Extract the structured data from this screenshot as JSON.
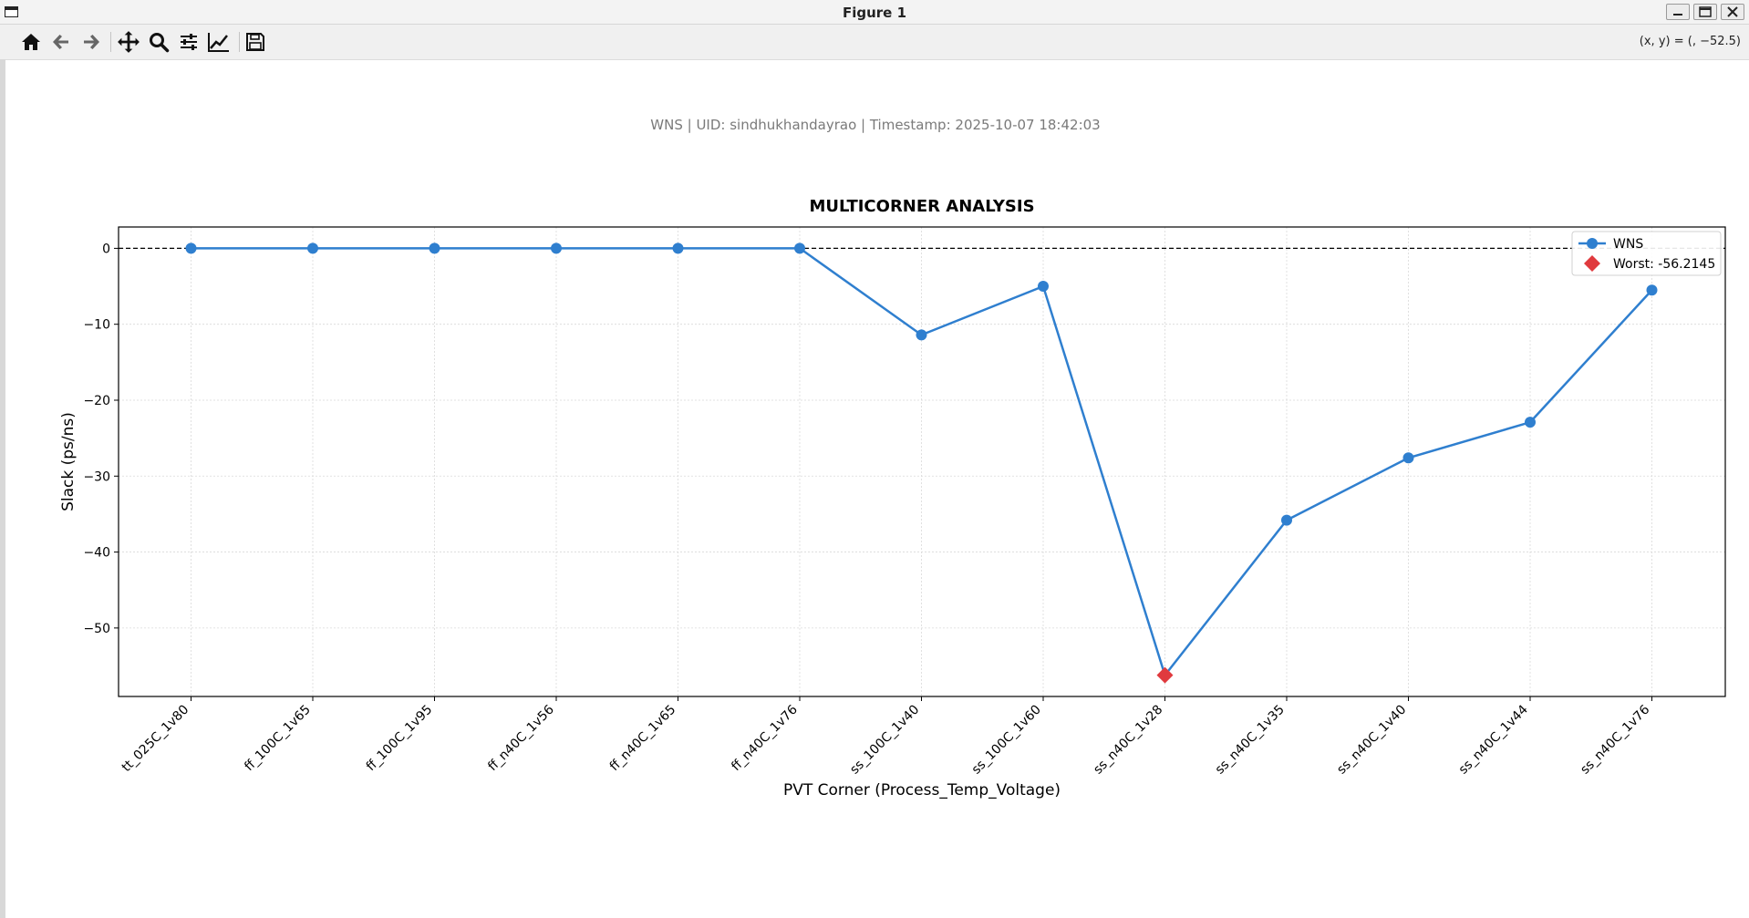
{
  "window": {
    "title": "Figure 1",
    "icon": "window-icon",
    "controls": [
      "minimize-icon",
      "maximize-icon",
      "close-icon"
    ]
  },
  "toolbar": {
    "tools": [
      {
        "name": "home",
        "icon": "home-icon"
      },
      {
        "name": "back",
        "icon": "arrow-left-icon"
      },
      {
        "name": "forward",
        "icon": "arrow-right-icon"
      },
      {
        "name": "pan",
        "icon": "move-icon"
      },
      {
        "name": "zoom",
        "icon": "magnifier-icon"
      },
      {
        "name": "configure-subplots",
        "icon": "sliders-icon"
      },
      {
        "name": "edit-axes",
        "icon": "line-chart-icon"
      },
      {
        "name": "save",
        "icon": "floppy-disk-icon"
      }
    ],
    "coords": "(x, y) = (, −52.5)"
  },
  "figure": {
    "suptitle": "WNS | UID: sindhukhandayrao | Timestamp: 2025-10-07 18:42:03"
  },
  "chart_data": {
    "type": "line",
    "title": "MULTICORNER ANALYSIS",
    "xlabel": "PVT Corner (Process_Temp_Voltage)",
    "ylabel": "Slack (ps/ns)",
    "categories": [
      "tt_025C_1v80",
      "ff_100C_1v65",
      "ff_100C_1v95",
      "ff_n40C_1v56",
      "ff_n40C_1v65",
      "ff_n40C_1v76",
      "ss_100C_1v40",
      "ss_100C_1v60",
      "ss_n40C_1v28",
      "ss_n40C_1v35",
      "ss_n40C_1v40",
      "ss_n40C_1v44",
      "ss_n40C_1v76"
    ],
    "series": [
      {
        "name": "WNS",
        "color": "#2f7fcf",
        "values": [
          0,
          0,
          0,
          0,
          0,
          0,
          -11.4,
          -5.0,
          -56.2145,
          -35.8,
          -27.6,
          -22.9,
          -5.5
        ]
      }
    ],
    "worst": {
      "label": "Worst: -56.2145",
      "category": "ss_n40C_1v28",
      "value": -56.2145,
      "color": "#e03a3e",
      "marker": "diamond"
    },
    "reference_line": {
      "y": 0,
      "style": "dashed",
      "color": "#000000"
    },
    "ylim": [
      -59.02,
      2.81
    ],
    "yticks": [
      0,
      -10,
      -20,
      -30,
      -40,
      -50
    ],
    "ytick_labels": [
      "0",
      "−10",
      "−20",
      "−30",
      "−40",
      "−50"
    ],
    "grid": true,
    "legend_position": "top-right"
  }
}
